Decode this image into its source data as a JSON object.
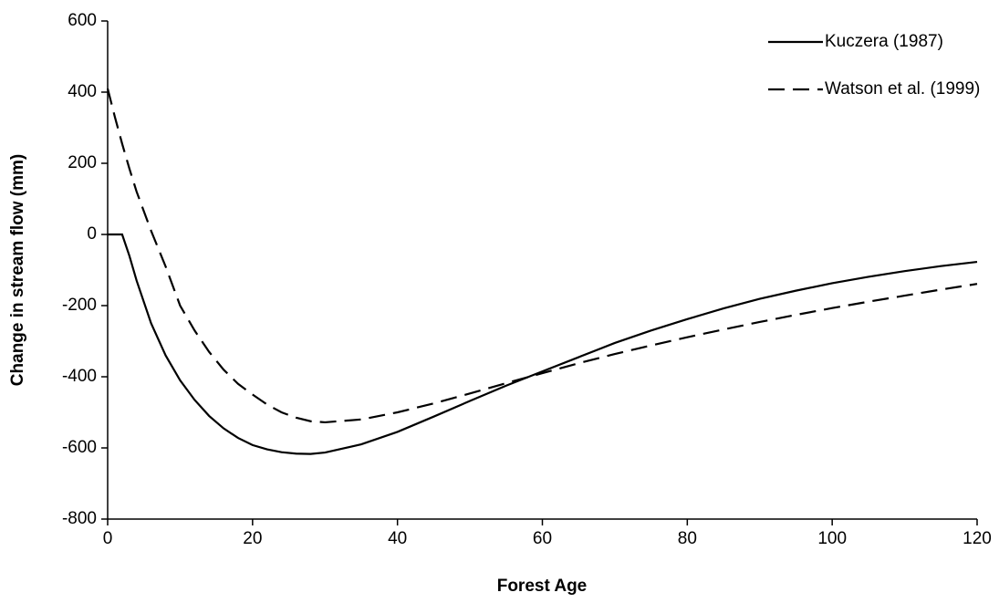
{
  "chart_data": {
    "type": "line",
    "x_label": "Forest Age",
    "y_label": "Change in stream flow (mm)",
    "x": [
      0,
      1,
      2,
      3,
      4,
      6,
      8,
      10,
      12,
      14,
      16,
      18,
      20,
      22,
      24,
      26,
      28,
      30,
      35,
      40,
      45,
      50,
      55,
      60,
      65,
      70,
      75,
      80,
      85,
      90,
      95,
      100,
      105,
      110,
      115,
      120
    ],
    "series": [
      {
        "name": "Kuczera (1987)",
        "color": "#000000",
        "dash": "solid",
        "values": [
          0,
          0,
          0,
          -60,
          -130,
          -250,
          -340,
          -410,
          -465,
          -510,
          -545,
          -572,
          -592,
          -604,
          -612,
          -616,
          -617,
          -613,
          -590,
          -555,
          -512,
          -468,
          -425,
          -385,
          -345,
          -305,
          -270,
          -238,
          -208,
          -181,
          -158,
          -137,
          -119,
          -103,
          -89,
          -77
        ]
      },
      {
        "name": "Watson et al. (1999)",
        "color": "#000000",
        "dash": "dashed",
        "values": [
          410,
          330,
          255,
          185,
          120,
          10,
          -90,
          -200,
          -270,
          -330,
          -380,
          -420,
          -450,
          -478,
          -500,
          -515,
          -525,
          -528,
          -520,
          -500,
          -475,
          -447,
          -418,
          -390,
          -362,
          -336,
          -312,
          -289,
          -267,
          -246,
          -226,
          -207,
          -189,
          -172,
          -155,
          -139
        ]
      }
    ],
    "xlim": [
      0,
      120
    ],
    "xticks": [
      0,
      20,
      40,
      60,
      80,
      100,
      120
    ],
    "ylim": [
      -800,
      600
    ],
    "yticks": [
      -800,
      -600,
      -400,
      -200,
      0,
      200,
      400,
      600
    ],
    "legend": "top-right"
  }
}
